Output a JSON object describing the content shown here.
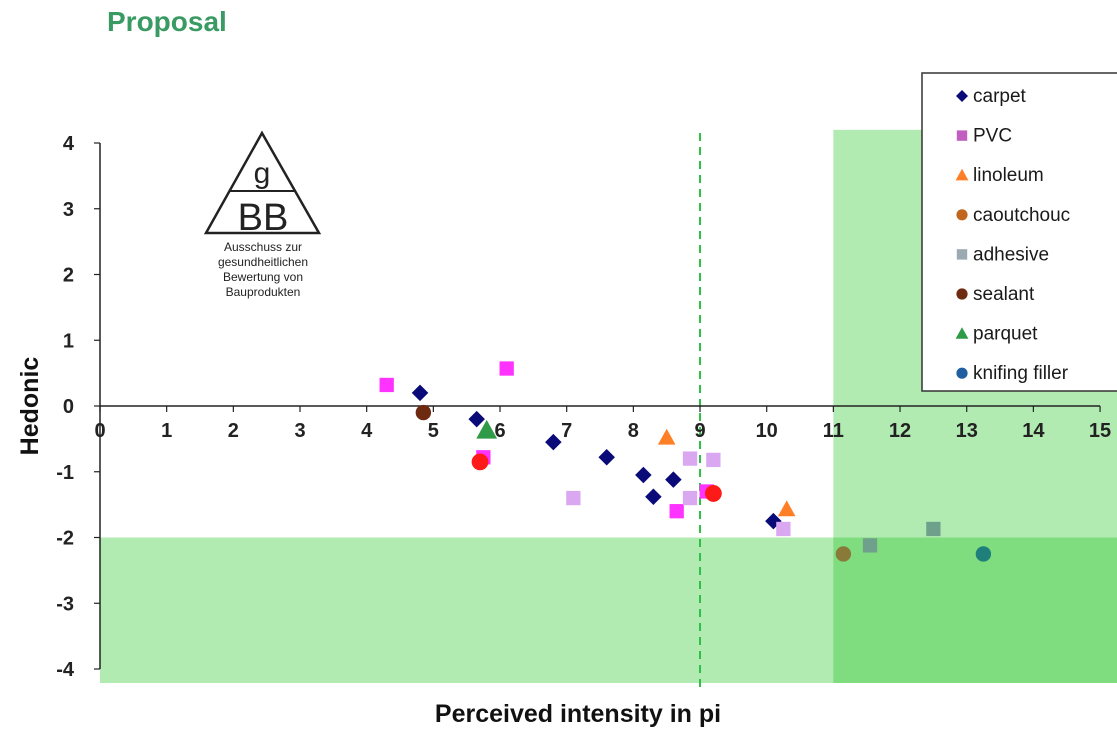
{
  "slide": {
    "title": "Proposal",
    "title_color": "#3a9a63"
  },
  "logo": {
    "top_letter": "g",
    "main_letters": "BB",
    "caption_lines": [
      "Ausschuss zur",
      "gesundheitlichen",
      "Bewertung von",
      "Bauprodukten"
    ]
  },
  "chart_data": {
    "type": "scatter",
    "title": "",
    "xlabel": "Perceived intensity in pi",
    "ylabel": "Hedonic",
    "xlim": [
      0,
      15
    ],
    "ylim": [
      -4,
      4
    ],
    "xticks": [
      "0",
      "1",
      "2",
      "3",
      "4",
      "5",
      "6",
      "7",
      "8",
      "9",
      "10",
      "11",
      "12",
      "13",
      "14",
      "15"
    ],
    "yticks": [
      "4",
      "3",
      "2",
      "1",
      "0",
      "-1",
      "-2",
      "-3",
      "-4"
    ],
    "grid": false,
    "legend_position": "top-right",
    "reference_line": {
      "x": 9,
      "style": "dashed",
      "color": "#2fbf46"
    },
    "shaded_regions": [
      {
        "x": [
          11,
          15
        ],
        "y": [
          -4,
          4.2
        ],
        "color": "#a4e8a4"
      },
      {
        "x": [
          0,
          15
        ],
        "y": [
          -4,
          -2
        ],
        "color": "#a4e8a4"
      }
    ],
    "series": [
      {
        "name": "carpet",
        "marker": "diamond",
        "color": "#0a0a78",
        "x": [
          4.8,
          5.65,
          6.8,
          7.6,
          8.15,
          8.3,
          8.6,
          10.1
        ],
        "y": [
          0.2,
          -0.2,
          -0.55,
          -0.78,
          -1.05,
          -1.38,
          -1.12,
          -1.75
        ]
      },
      {
        "name": "PVC",
        "marker": "square",
        "color": "#c05fc0",
        "x": [
          4.3,
          6.1,
          5.75,
          8.65,
          9.1,
          7.1,
          8.85,
          10.25,
          8.85,
          9.2
        ],
        "y": [
          0.32,
          0.57,
          -0.78,
          -1.6,
          -1.3,
          -1.4,
          -1.4,
          -1.87,
          -0.8,
          -0.82
        ],
        "point_colors": [
          "#ff33ff",
          "#ff33ff",
          "#ff33ff",
          "#ff33ff",
          "#ff33ff",
          "#d9a8f0",
          "#d9a8f0",
          "#d9a8f0",
          "#d9a8f0",
          "#d9a8f0"
        ]
      },
      {
        "name": "linoleum",
        "marker": "triangle",
        "color": "#ff7f27",
        "x": [
          8.5,
          10.3
        ],
        "y": [
          -0.48,
          -1.57
        ]
      },
      {
        "name": "caoutchouc",
        "marker": "circle",
        "color": "#c0661e",
        "x": [
          5.7,
          9.2,
          11.15
        ],
        "y": [
          -0.85,
          -1.33,
          -2.25
        ],
        "point_colors": [
          "#ff1a1a",
          "#ff1a1a",
          "#8a7a3a"
        ]
      },
      {
        "name": "adhesive",
        "marker": "square",
        "color": "#9aaab0",
        "x": [
          11.55,
          12.5
        ],
        "y": [
          -2.12,
          -1.87
        ],
        "point_colors": [
          "#6fa08c",
          "#6fa08c"
        ]
      },
      {
        "name": "sealant",
        "marker": "circle",
        "color": "#6e2a10",
        "x": [
          4.85
        ],
        "y": [
          -0.1
        ]
      },
      {
        "name": "parquet",
        "marker": "triangle",
        "color": "#2f9a48",
        "x": [
          5.8
        ],
        "y": [
          -0.37
        ]
      },
      {
        "name": "knifing filler",
        "marker": "circle",
        "color": "#1f5f9f",
        "x": [
          13.25
        ],
        "y": [
          -2.25
        ],
        "point_colors": [
          "#1f7f7a"
        ]
      }
    ]
  }
}
